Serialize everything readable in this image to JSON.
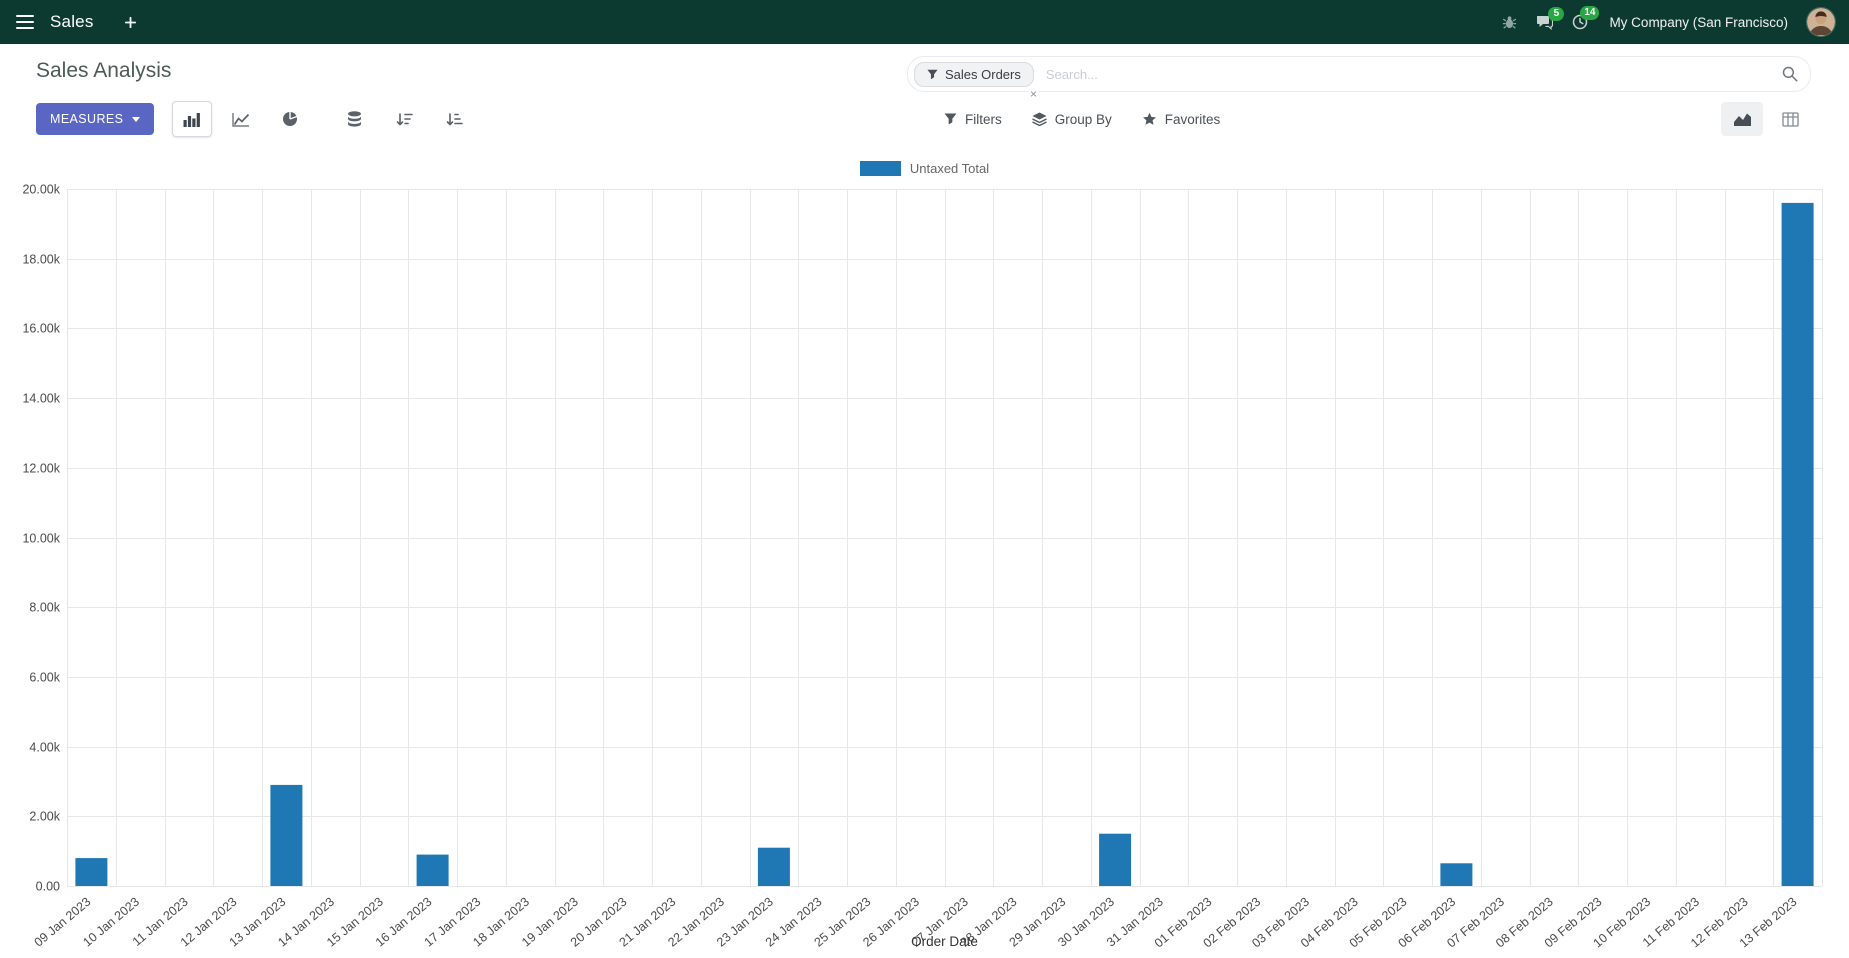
{
  "navbar": {
    "brand": "Sales",
    "messages_badge": "5",
    "activities_badge": "14",
    "company": "My Company (San Francisco)"
  },
  "control_panel": {
    "title": "Sales Analysis",
    "measures_label": "MEASURES",
    "search": {
      "facet_label": "Sales Orders",
      "remove_label": "×",
      "placeholder": "Search..."
    },
    "menus": {
      "filters": "Filters",
      "group_by": "Group By",
      "favorites": "Favorites"
    }
  },
  "chart_data": {
    "type": "bar",
    "title": "",
    "xlabel": "Order Date",
    "ylabel": "",
    "ylim": [
      0,
      20000
    ],
    "ytick_step": 2000,
    "grid": true,
    "legend_position": "top-center",
    "categories": [
      "09 Jan 2023",
      "10 Jan 2023",
      "11 Jan 2023",
      "12 Jan 2023",
      "13 Jan 2023",
      "14 Jan 2023",
      "15 Jan 2023",
      "16 Jan 2023",
      "17 Jan 2023",
      "18 Jan 2023",
      "19 Jan 2023",
      "20 Jan 2023",
      "21 Jan 2023",
      "22 Jan 2023",
      "23 Jan 2023",
      "24 Jan 2023",
      "25 Jan 2023",
      "26 Jan 2023",
      "27 Jan 2023",
      "28 Jan 2023",
      "29 Jan 2023",
      "30 Jan 2023",
      "31 Jan 2023",
      "01 Feb 2023",
      "02 Feb 2023",
      "03 Feb 2023",
      "04 Feb 2023",
      "05 Feb 2023",
      "06 Feb 2023",
      "07 Feb 2023",
      "08 Feb 2023",
      "09 Feb 2023",
      "10 Feb 2023",
      "11 Feb 2023",
      "12 Feb 2023",
      "13 Feb 2023"
    ],
    "series": [
      {
        "name": "Untaxed Total",
        "color": "#1f77b4",
        "values": [
          800,
          0,
          0,
          0,
          2900,
          0,
          0,
          900,
          0,
          0,
          0,
          0,
          0,
          0,
          1100,
          0,
          0,
          0,
          0,
          0,
          0,
          1500,
          0,
          0,
          0,
          0,
          0,
          0,
          650,
          0,
          0,
          0,
          0,
          0,
          0,
          19600
        ]
      }
    ]
  },
  "colors": {
    "navbar_bg": "#0c3a31",
    "primary": "#5a66c4",
    "bar": "#1f77b4",
    "badge": "#28a745"
  }
}
